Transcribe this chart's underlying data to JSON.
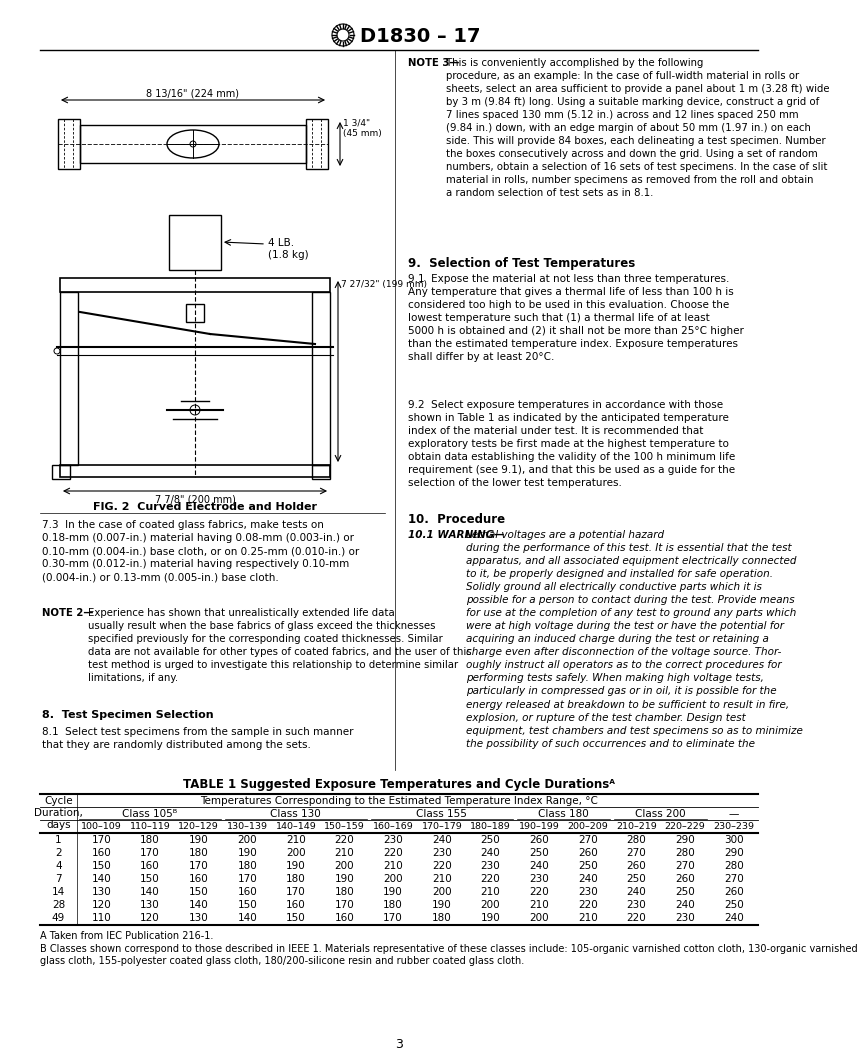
{
  "title": "D1830 – 17",
  "page_number": "3",
  "fig_caption": "FIG. 2  Curved Electrode and Holder",
  "table_title": "TABLE 1 Suggested Exposure Temperatures and Cycle Durationsᴬ",
  "table_header_row1": "Temperatures Corresponding to the Estimated Temperature Index Range, °C",
  "table_subheaders": [
    "100–109",
    "110–119",
    "120–129",
    "130–139",
    "140–149",
    "150–159",
    "160–169",
    "170–179",
    "180–189",
    "190–199",
    "200–209",
    "210–219",
    "220–229",
    "230–239"
  ],
  "table_days": [
    1,
    2,
    4,
    7,
    14,
    28,
    49
  ],
  "table_data": [
    [
      170,
      180,
      190,
      200,
      210,
      220,
      230,
      240,
      250,
      260,
      270,
      280,
      290,
      300
    ],
    [
      160,
      170,
      180,
      190,
      200,
      210,
      220,
      230,
      240,
      250,
      260,
      270,
      280,
      290
    ],
    [
      150,
      160,
      170,
      180,
      190,
      200,
      210,
      220,
      230,
      240,
      250,
      260,
      270,
      280
    ],
    [
      140,
      150,
      160,
      170,
      180,
      190,
      200,
      210,
      220,
      230,
      240,
      250,
      260,
      270
    ],
    [
      130,
      140,
      150,
      160,
      170,
      180,
      190,
      200,
      210,
      220,
      230,
      240,
      250,
      260
    ],
    [
      120,
      130,
      140,
      150,
      160,
      170,
      180,
      190,
      200,
      210,
      220,
      230,
      240,
      250
    ],
    [
      110,
      120,
      130,
      140,
      150,
      160,
      170,
      180,
      190,
      200,
      210,
      220,
      230,
      240
    ]
  ],
  "footnote_a": "A Taken from IEC Publication 216-1.",
  "footnote_b": "B Classes shown correspond to those described in IEEE 1. Materials representative of these classes include: 105-organic varnished cotton cloth, 130-organic varnished\nglass cloth, 155-polyester coated glass cloth, 180/200-silicone resin and rubber coated glass cloth.",
  "section8_heading": "8.  Test Specimen Selection",
  "section8_text": "8.1  Select test specimens from the sample in such manner\nthat they are randomly distributed among the sets.",
  "note2_text": "Experience has shown that unrealistically extended life data\nusually result when the base fabrics of glass exceed the thicknesses\nspecified previously for the corresponding coated thicknesses. Similar\ndata are not available for other types of coated fabrics, and the user of this\ntest method is urged to investigate this relationship to determine similar\nlimitations, if any.",
  "section7_text": "7.3  In the case of coated glass fabrics, make tests on\n0.18-mm (0.007-in.) material having 0.08-mm (0.003-in.) or\n0.10-mm (0.004-in.) base cloth, or on 0.25-mm (0.010-in.) or\n0.30-mm (0.012-in.) material having respectively 0.10-mm\n(0.004-in.) or 0.13-mm (0.005-in.) base cloth.",
  "section9_heading": "9.  Selection of Test Temperatures",
  "section9_1_text": "9.1  Expose the material at not less than three temperatures.\nAny temperature that gives a thermal life of less than 100 h is\nconsidered too high to be used in this evaluation. Choose the\nlowest temperature such that (1) a thermal life of at least\n5000 h is obtained and (2) it shall not be more than 25°C higher\nthan the estimated temperature index. Exposure temperatures\nshall differ by at least 20°C.",
  "section9_2_text": "9.2  Select exposure temperatures in accordance with those\nshown in Table 1 as indicated by the anticipated temperature\nindex of the material under test. It is recommended that\nexploratory tests be first made at the highest temperature to\nobtain data establishing the validity of the 100 h minimum life\nrequirement (see 9.1), and that this be used as a guide for the\nselection of the lower test temperatures.",
  "section10_heading": "10.  Procedure",
  "section10_warning_label": "10.1 WARNING—",
  "section10_text": "Lethal voltages are a potential hazard\nduring the performance of this test. It is essential that the test\napparatus, and all associated equipment electrically connected\nto it, be properly designed and installed for safe operation.\nSolidly ground all electrically conductive parts which it is\npossible for a person to contact during the test. Provide means\nfor use at the completion of any test to ground any parts which\nwere at high voltage during the test or have the potential for\nacquiring an induced charge during the test or retaining a\ncharge even after disconnection of the voltage source. Thor-\noughly instruct all operators as to the correct procedures for\nperforming tests safely. When making high voltage tests,\nparticularly in compressed gas or in oil, it is possible for the\nenergy released at breakdown to be sufficient to result in fire,\nexplosion, or rupture of the test chamber. Design test\nequipment, test chambers and test specimens so as to minimize\nthe possibility of such occurrences and to eliminate the",
  "note3_label": "NOTE 3—",
  "note3_text": "This is conveniently accomplished by the following\nprocedure, as an example: In the case of full-width material in rolls or\nsheets, select an area sufficient to provide a panel about 1 m (3.28 ft) wide\nby 3 m (9.84 ft) long. Using a suitable marking device, construct a grid of\n7 lines spaced 130 mm (5.12 in.) across and 12 lines spaced 250 mm\n(9.84 in.) down, with an edge margin of about 50 mm (1.97 in.) on each\nside. This will provide 84 boxes, each delineating a test specimen. Number\nthe boxes consecutively across and down the grid. Using a set of random\nnumbers, obtain a selection of 16 sets of test specimens. In the case of slit\nmaterial in rolls, number specimens as removed from the roll and obtain\na random selection of test sets as in 8.1.",
  "bg_color": "#ffffff"
}
